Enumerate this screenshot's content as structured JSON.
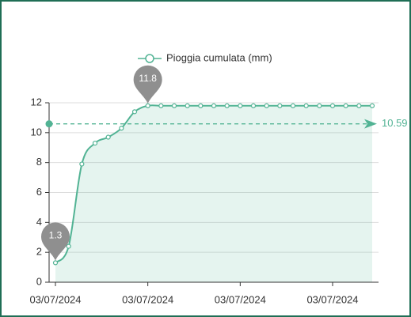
{
  "chart_data": {
    "type": "line",
    "legend": "Pioggia cumulata (mm)",
    "categories": [
      "03/07/2024",
      null,
      null,
      null,
      null,
      null,
      null,
      "03/07/2024",
      null,
      null,
      null,
      null,
      null,
      null,
      "03/07/2024",
      null,
      null,
      null,
      null,
      null,
      null,
      "03/07/2024",
      null,
      null,
      null
    ],
    "series": [
      {
        "name": "Pioggia cumulata (mm)",
        "color": "#52b394",
        "values": [
          1.3,
          2.4,
          7.9,
          9.3,
          9.7,
          10.3,
          11.4,
          11.8,
          11.8,
          11.8,
          11.8,
          11.8,
          11.8,
          11.8,
          11.8,
          11.8,
          11.8,
          11.8,
          11.8,
          11.8,
          11.8,
          11.8,
          11.8,
          11.8,
          11.8
        ]
      }
    ],
    "average": 10.59,
    "ylim": [
      0,
      12
    ],
    "yticks": [
      0,
      2,
      4,
      6,
      8,
      10,
      12
    ],
    "grid": true
  }
}
